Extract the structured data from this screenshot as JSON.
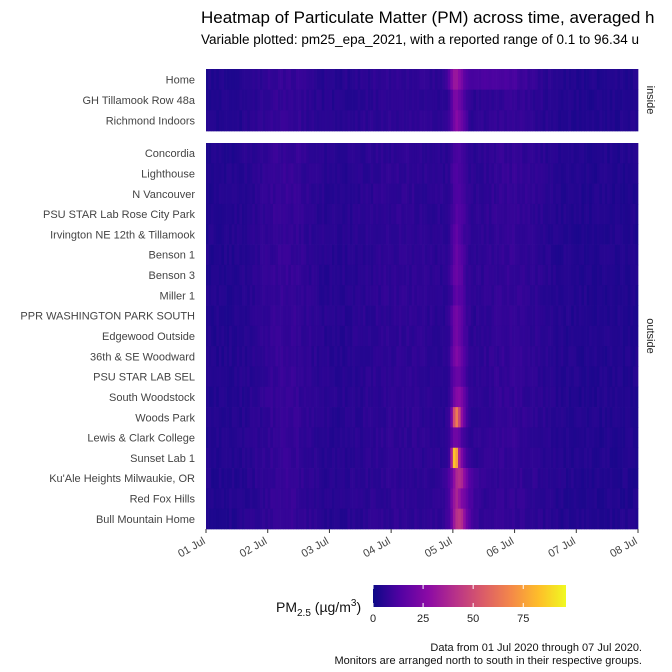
{
  "chart_data": {
    "type": "heatmap",
    "title": "Heatmap of Particulate Matter (PM) across time, averaged h",
    "subtitle": "Variable plotted: pm25_epa_2021, with a reported range of 0.1 to 96.34 u",
    "x_ticks": [
      "01 Jul",
      "02 Jul",
      "03 Jul",
      "04 Jul",
      "05 Jul",
      "06 Jul",
      "07 Jul",
      "08 Jul"
    ],
    "x_range": [
      "2020-07-01",
      "2020-07-08"
    ],
    "facets": [
      {
        "label": "inside",
        "rows": [
          "Home",
          "GH Tillamook Row 48a",
          "Richmond Indoors"
        ]
      },
      {
        "label": "outside",
        "rows": [
          "Concordia",
          "Lighthouse",
          "N Vancouver",
          "PSU STAR Lab Rose City Park",
          "Irvington NE 12th & Tillamook",
          "Benson 1",
          "Benson 3",
          "Miller 1",
          "PPR WASHINGTON PARK SOUTH",
          "Edgewood Outside",
          "36th & SE Woodward",
          "PSU STAR LAB SEL",
          "South Woodstock",
          "Woods Park",
          "Lewis & Clark College",
          "Sunset Lab 1",
          "Ku'Ale Heights Milwaukie, OR",
          "Red Fox Hills",
          "Bull Mountain Home"
        ]
      }
    ],
    "value_range": [
      0.1,
      96.34
    ],
    "legend": {
      "title_main": "PM",
      "title_sub": "2.5",
      "title_unit": " (µg/m",
      "title_sup": "3",
      "title_end": ")",
      "ticks": [
        0,
        25,
        50,
        75
      ],
      "max": 96.34,
      "colorscale": "plasma",
      "placement": "bottom"
    },
    "colors": [
      "#0d0887",
      "#5302a3",
      "#8b0aa5",
      "#b83289",
      "#db5c68",
      "#f48849",
      "#febd2a",
      "#f0f921"
    ],
    "caption_lines": [
      "Data from 01 Jul 2020 through 07 Jul 2020.",
      "Monitors are arranged north to south in their respective groups."
    ]
  }
}
